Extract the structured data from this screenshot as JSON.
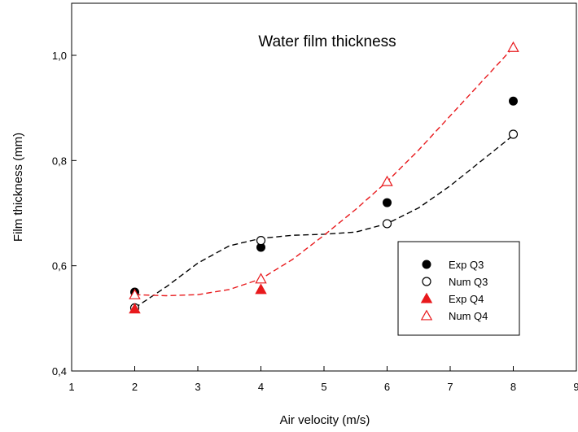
{
  "chart_data": {
    "type": "scatter",
    "title": "Water film thickness",
    "xlabel": "Air velocity (m/s)",
    "ylabel": "Film thickness (mm)",
    "xlim": [
      1,
      9
    ],
    "ylim": [
      0.4,
      1.1
    ],
    "xticks": [
      "1",
      "2",
      "3",
      "4",
      "5",
      "6",
      "7",
      "8",
      "9"
    ],
    "yticks": [
      "0,4",
      "0,6",
      "0,8",
      "1,0"
    ],
    "grid": false,
    "legend_position": "bottom-right",
    "series": [
      {
        "name": "Exp Q3",
        "marker": "filled-circle",
        "color": "#000000",
        "x": [
          2,
          4,
          6,
          8
        ],
        "y": [
          0.55,
          0.635,
          0.72,
          0.913
        ]
      },
      {
        "name": "Num Q3",
        "marker": "open-circle",
        "color": "#000000",
        "x": [
          2,
          4,
          6,
          8
        ],
        "y": [
          0.52,
          0.648,
          0.68,
          0.85
        ]
      },
      {
        "name": "Exp Q4",
        "marker": "filled-triangle",
        "color": "#e8191c",
        "x": [
          2,
          4
        ],
        "y": [
          0.518,
          0.555
        ]
      },
      {
        "name": "Num Q4",
        "marker": "open-triangle",
        "color": "#e8191c",
        "x": [
          2,
          4,
          6,
          8
        ],
        "y": [
          0.545,
          0.575,
          0.76,
          1.015
        ]
      }
    ],
    "fit_lines": [
      {
        "color": "#000000",
        "style": "dashed",
        "x": [
          2,
          2.5,
          3,
          3.5,
          4,
          4.5,
          5,
          5.5,
          6,
          6.5,
          7,
          7.5,
          8
        ],
        "y": [
          0.52,
          0.56,
          0.605,
          0.638,
          0.652,
          0.658,
          0.66,
          0.664,
          0.68,
          0.71,
          0.752,
          0.8,
          0.848
        ]
      },
      {
        "color": "#e8191c",
        "style": "dashed",
        "x": [
          2,
          2.5,
          3,
          3.5,
          4,
          4.5,
          5,
          5.5,
          6,
          6.5,
          7,
          7.5,
          8
        ],
        "y": [
          0.545,
          0.543,
          0.545,
          0.555,
          0.575,
          0.612,
          0.658,
          0.707,
          0.76,
          0.82,
          0.885,
          0.95,
          1.015
        ]
      }
    ]
  }
}
